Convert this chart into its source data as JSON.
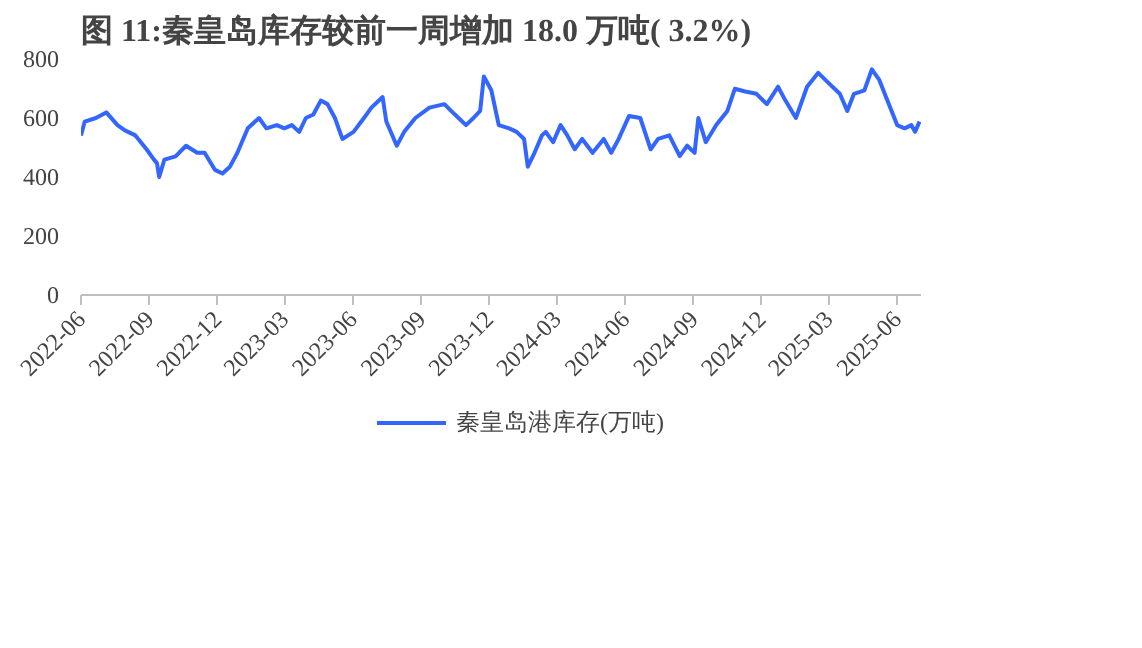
{
  "chart_data": {
    "type": "line",
    "title": "图 11:秦皇岛库存较前一周增加 18.0 万吨( 3.2%)",
    "x": [
      "2022-06-01",
      "2022-06-06",
      "2022-06-21",
      "2022-07-05",
      "2022-07-20",
      "2022-07-30",
      "2022-08-13",
      "2022-08-28",
      "2022-09-07",
      "2022-09-11",
      "2022-09-14",
      "2022-09-21",
      "2022-10-06",
      "2022-10-20",
      "2022-11-04",
      "2022-11-14",
      "2022-11-28",
      "2022-12-08",
      "2022-12-18",
      "2022-12-28",
      "2023-01-11",
      "2023-01-26",
      "2023-02-05",
      "2023-02-19",
      "2023-03-01",
      "2023-03-11",
      "2023-03-21",
      "2023-03-30",
      "2023-04-09",
      "2023-04-19",
      "2023-04-28",
      "2023-05-08",
      "2023-05-18",
      "2023-06-02",
      "2023-06-16",
      "2023-06-26",
      "2023-07-11",
      "2023-07-16",
      "2023-07-30",
      "2023-08-09",
      "2023-08-24",
      "2023-09-12",
      "2023-10-02",
      "2023-10-11",
      "2023-10-21",
      "2023-10-31",
      "2023-11-10",
      "2023-11-19",
      "2023-11-24",
      "2023-12-04",
      "2023-12-14",
      "2023-12-28",
      "2024-01-07",
      "2024-01-17",
      "2024-01-22",
      "2024-01-31",
      "2024-02-10",
      "2024-02-15",
      "2024-02-25",
      "2024-03-06",
      "2024-03-15",
      "2024-03-25",
      "2024-04-04",
      "2024-04-18",
      "2024-05-03",
      "2024-05-13",
      "2024-05-23",
      "2024-06-06",
      "2024-06-21",
      "2024-07-05",
      "2024-07-15",
      "2024-07-30",
      "2024-08-13",
      "2024-08-23",
      "2024-09-02",
      "2024-09-07",
      "2024-09-17",
      "2024-10-01",
      "2024-10-16",
      "2024-10-26",
      "2024-11-09",
      "2024-11-24",
      "2024-12-08",
      "2024-12-23",
      "2025-01-02",
      "2025-01-16",
      "2025-01-31",
      "2025-02-15",
      "2025-03-01",
      "2025-03-16",
      "2025-03-26",
      "2025-04-04",
      "2025-04-18",
      "2025-04-28",
      "2025-05-08",
      "2025-05-17",
      "2025-06-01",
      "2025-06-11",
      "2025-06-20",
      "2025-06-25",
      "2025-07-01"
    ],
    "series": [
      {
        "name": "秦皇岛港库存(万吨)",
        "color": "#3366ff",
        "values": [
          541,
          588,
          600,
          619,
          576,
          558,
          541,
          494,
          459,
          447,
          400,
          459,
          470,
          506,
          482,
          482,
          424,
          412,
          435,
          482,
          565,
          600,
          565,
          576,
          565,
          576,
          553,
          600,
          612,
          659,
          647,
          600,
          529,
          553,
          600,
          635,
          671,
          588,
          506,
          553,
          600,
          635,
          647,
          624,
          600,
          576,
          600,
          624,
          741,
          694,
          576,
          565,
          553,
          529,
          435,
          482,
          541,
          553,
          518,
          576,
          541,
          494,
          529,
          482,
          529,
          482,
          529,
          607,
          600,
          494,
          529,
          541,
          471,
          506,
          482,
          600,
          518,
          576,
          624,
          699,
          690,
          682,
          647,
          706,
          659,
          600,
          706,
          753,
          718,
          682,
          624,
          682,
          694,
          765,
          729,
          671,
          576,
          565,
          576,
          553,
          588
        ]
      }
    ],
    "xlim": [
      "2022-06-01",
      "2025-07-03"
    ],
    "xticks": [
      {
        "value": "2022-06-01",
        "label": "2022-06"
      },
      {
        "value": "2022-09-01",
        "label": "2022-09"
      },
      {
        "value": "2022-12-01",
        "label": "2022-12"
      },
      {
        "value": "2023-03-01",
        "label": "2023-03"
      },
      {
        "value": "2023-06-01",
        "label": "2023-06"
      },
      {
        "value": "2023-09-01",
        "label": "2023-09"
      },
      {
        "value": "2023-12-01",
        "label": "2023-12"
      },
      {
        "value": "2024-03-01",
        "label": "2024-03"
      },
      {
        "value": "2024-06-01",
        "label": "2024-06"
      },
      {
        "value": "2024-09-01",
        "label": "2024-09"
      },
      {
        "value": "2024-12-01",
        "label": "2024-12"
      },
      {
        "value": "2025-03-01",
        "label": "2025-03"
      },
      {
        "value": "2025-06-01",
        "label": "2025-06"
      }
    ],
    "ylim": [
      0,
      800
    ],
    "yticks": [
      0,
      200,
      400,
      600,
      800
    ],
    "grid": false,
    "legend": "bottom",
    "marker": "none",
    "line_style": "solid"
  }
}
